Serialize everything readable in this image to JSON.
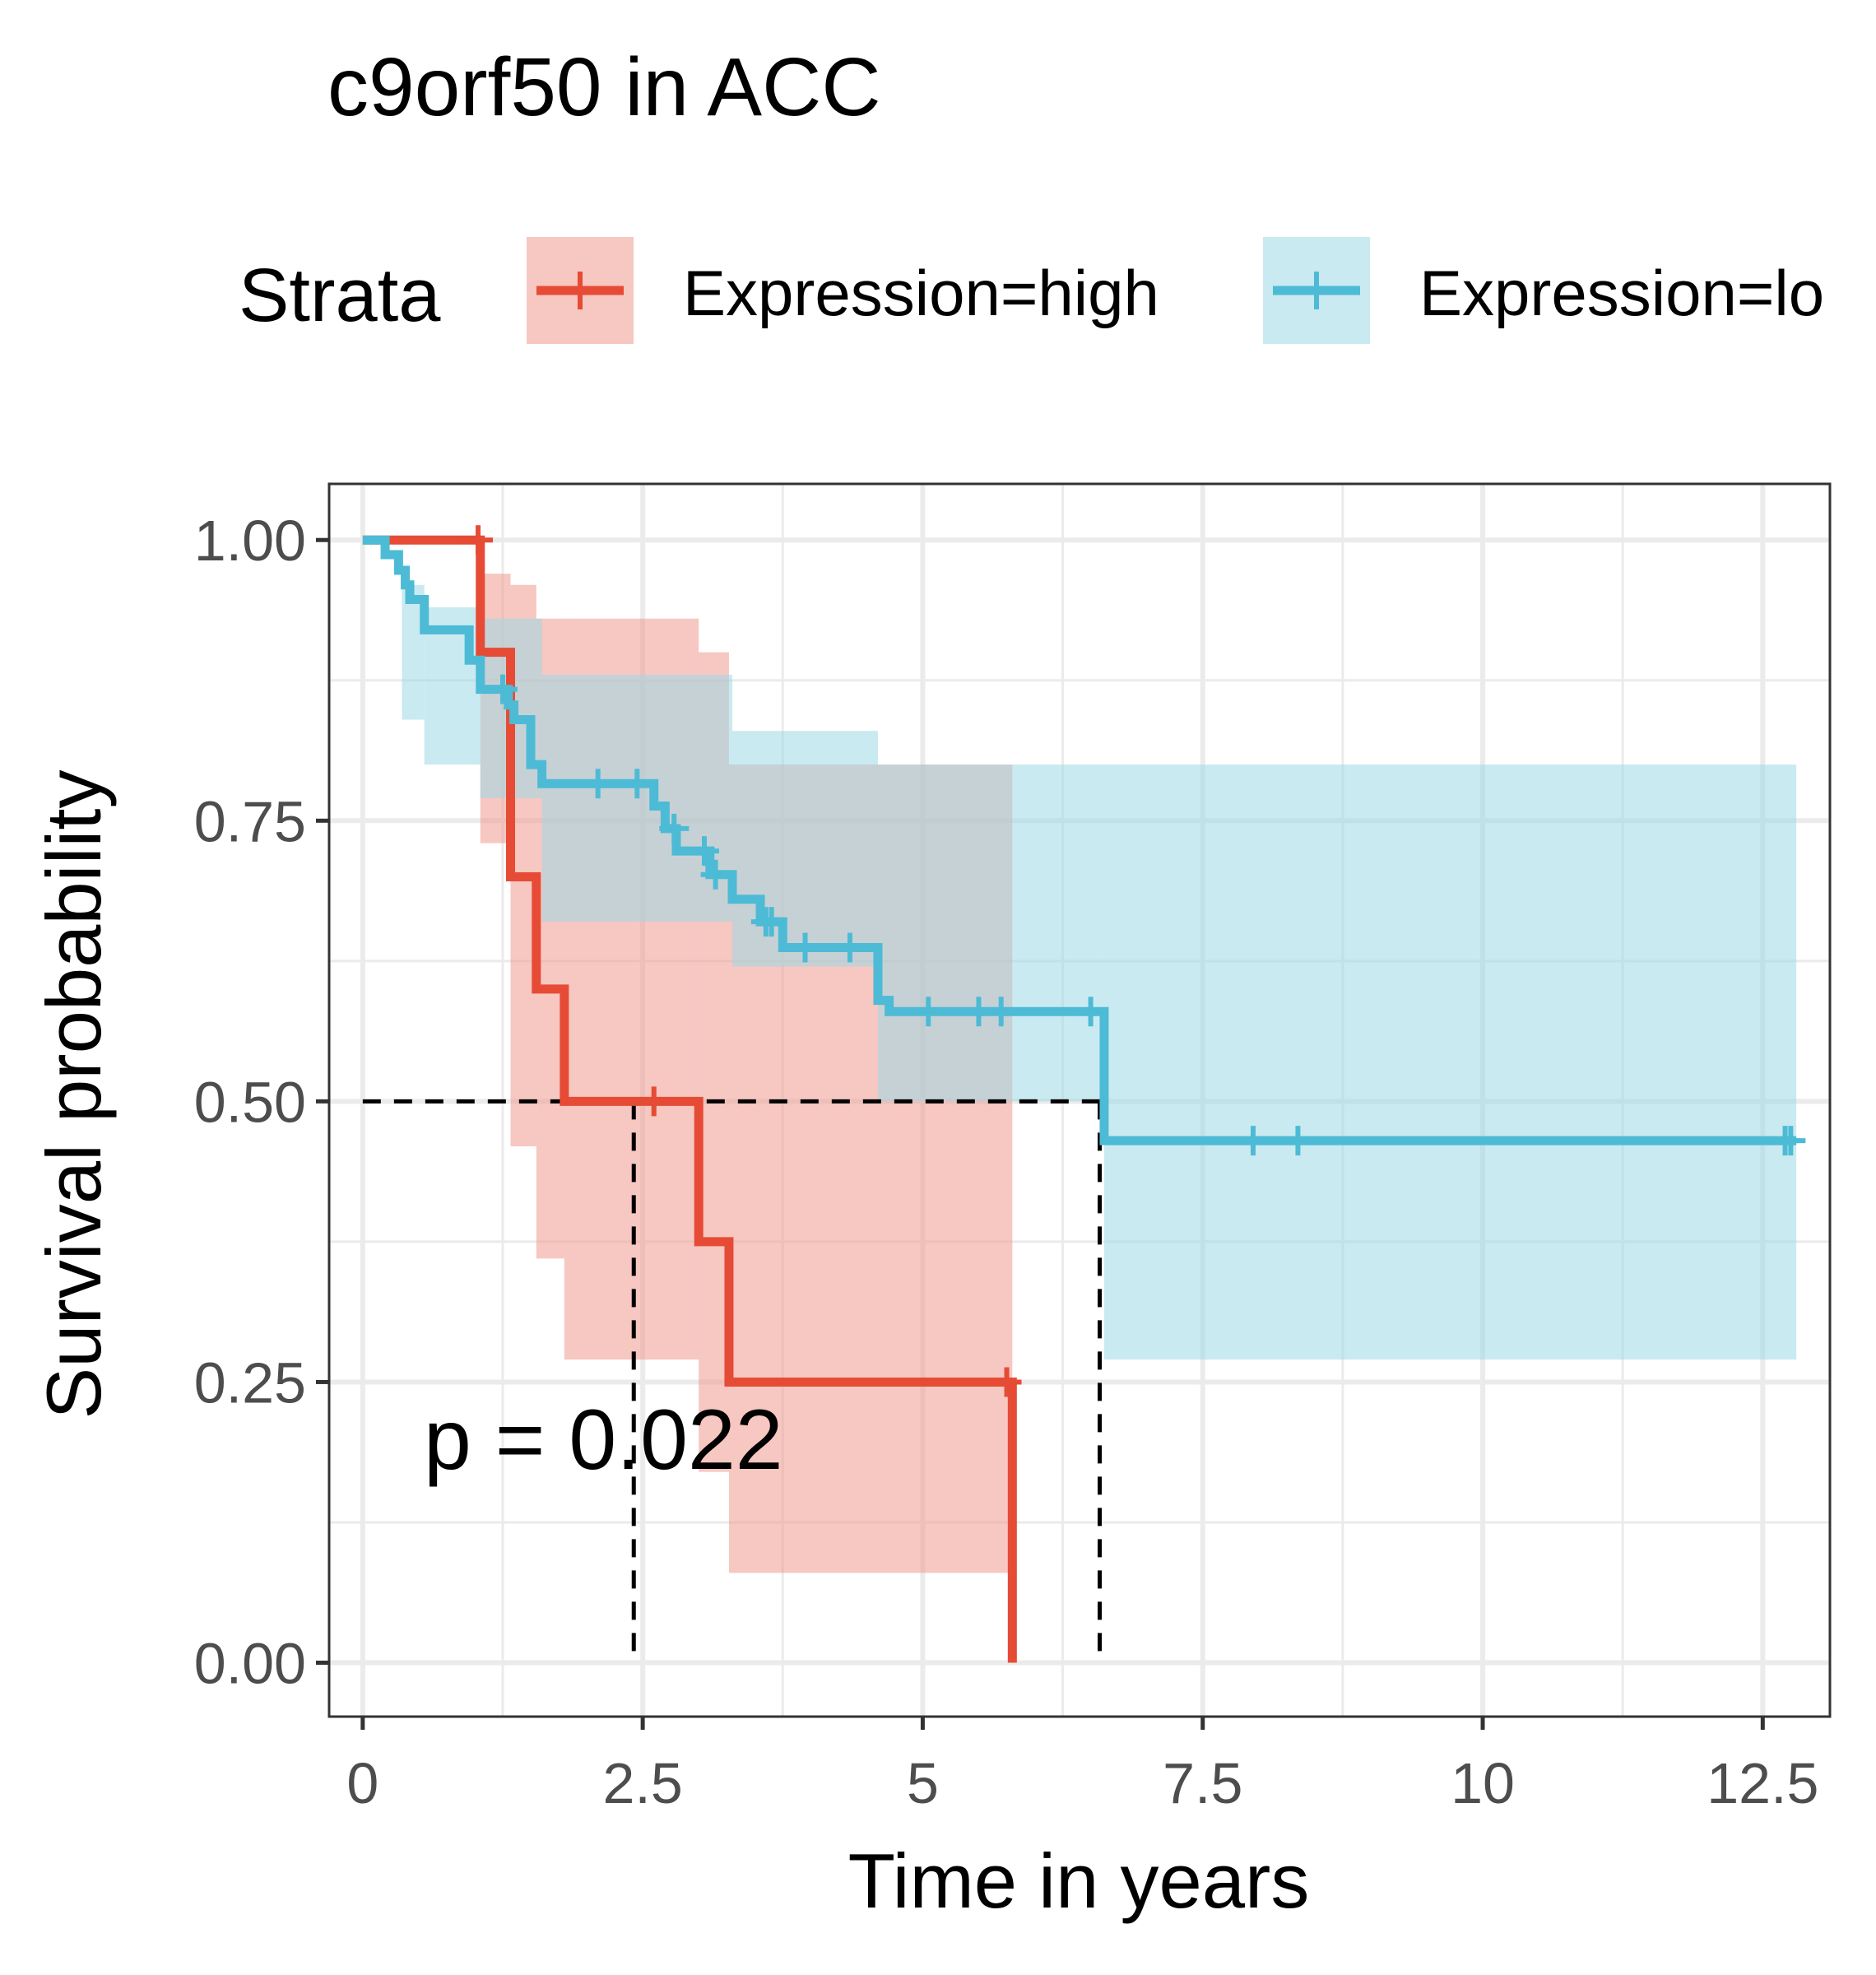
{
  "chart_data": {
    "type": "line",
    "title": "c9orf50 in ACC",
    "xlabel": "Time in years",
    "ylabel": "Survival probability",
    "xlim": [
      -0.3,
      13.1
    ],
    "ylim": [
      -0.048,
      1.05
    ],
    "x_ticks": [
      0,
      2.5,
      5,
      7.5,
      10,
      12.5
    ],
    "x_tick_labels": [
      "0",
      "2.5",
      "5",
      "7.5",
      "10",
      "12.5"
    ],
    "y_ticks": [
      0,
      0.25,
      0.5,
      0.75,
      1.0
    ],
    "y_tick_labels": [
      "0.00",
      "0.25",
      "0.50",
      "0.75",
      "1.00"
    ],
    "grid": true,
    "legend": {
      "title": "Strata",
      "position": "top",
      "entries": [
        "Expression=high",
        "Expression=lo"
      ]
    },
    "annotation": "p = 0.022",
    "median_line_y": 0.5,
    "medians": [
      2.42,
      6.58
    ],
    "series": [
      {
        "name": "Expression=high",
        "color": "#E64B35",
        "fill": "#F1998E",
        "steps": [
          [
            0.0,
            1.0
          ],
          [
            1.05,
            0.9
          ],
          [
            1.32,
            0.7
          ],
          [
            1.55,
            0.6
          ],
          [
            1.8,
            0.5
          ],
          [
            3.0,
            0.375
          ],
          [
            3.27,
            0.25
          ],
          [
            5.8,
            0.0
          ]
        ],
        "censor": [
          1.03,
          2.6,
          5.75
        ],
        "band": [
          [
            0.0,
            1.0,
            1.0
          ],
          [
            1.05,
            0.97,
            0.73
          ],
          [
            1.32,
            0.96,
            0.46
          ],
          [
            1.55,
            0.93,
            0.36
          ],
          [
            1.8,
            0.93,
            0.27
          ],
          [
            3.0,
            0.9,
            0.17
          ],
          [
            3.27,
            0.8,
            0.08
          ],
          [
            5.8,
            0.8,
            0.08
          ]
        ]
      },
      {
        "name": "Expression=lo",
        "color": "#4DBBD5",
        "fill": "#9ED8E6",
        "steps": [
          [
            0.0,
            1.0
          ],
          [
            0.2,
            0.987
          ],
          [
            0.32,
            0.973
          ],
          [
            0.38,
            0.96
          ],
          [
            0.42,
            0.947
          ],
          [
            0.55,
            0.92
          ],
          [
            0.95,
            0.893
          ],
          [
            1.05,
            0.867
          ],
          [
            1.3,
            0.853
          ],
          [
            1.35,
            0.84
          ],
          [
            1.5,
            0.8
          ],
          [
            1.6,
            0.783
          ],
          [
            2.6,
            0.763
          ],
          [
            2.7,
            0.743
          ],
          [
            2.8,
            0.723
          ],
          [
            3.1,
            0.702
          ],
          [
            3.3,
            0.68
          ],
          [
            3.55,
            0.66
          ],
          [
            3.75,
            0.637
          ],
          [
            4.6,
            0.59
          ],
          [
            4.7,
            0.58
          ],
          [
            6.62,
            0.465
          ]
        ],
        "censor": [
          1.25,
          2.1,
          2.45,
          2.78,
          3.05,
          3.15,
          3.6,
          3.65,
          3.95,
          4.35,
          5.05,
          5.5,
          5.7,
          6.5,
          7.95,
          8.35,
          12.7,
          12.75
        ],
        "band": [
          [
            0.0,
            1.0,
            1.0
          ],
          [
            0.35,
            0.96,
            0.84
          ],
          [
            0.55,
            0.94,
            0.8
          ],
          [
            1.05,
            0.93,
            0.77
          ],
          [
            1.6,
            0.88,
            0.66
          ],
          [
            3.3,
            0.83,
            0.62
          ],
          [
            4.6,
            0.8,
            0.5
          ],
          [
            6.62,
            0.8,
            0.27
          ],
          [
            12.8,
            0.8,
            0.27
          ]
        ]
      }
    ]
  }
}
